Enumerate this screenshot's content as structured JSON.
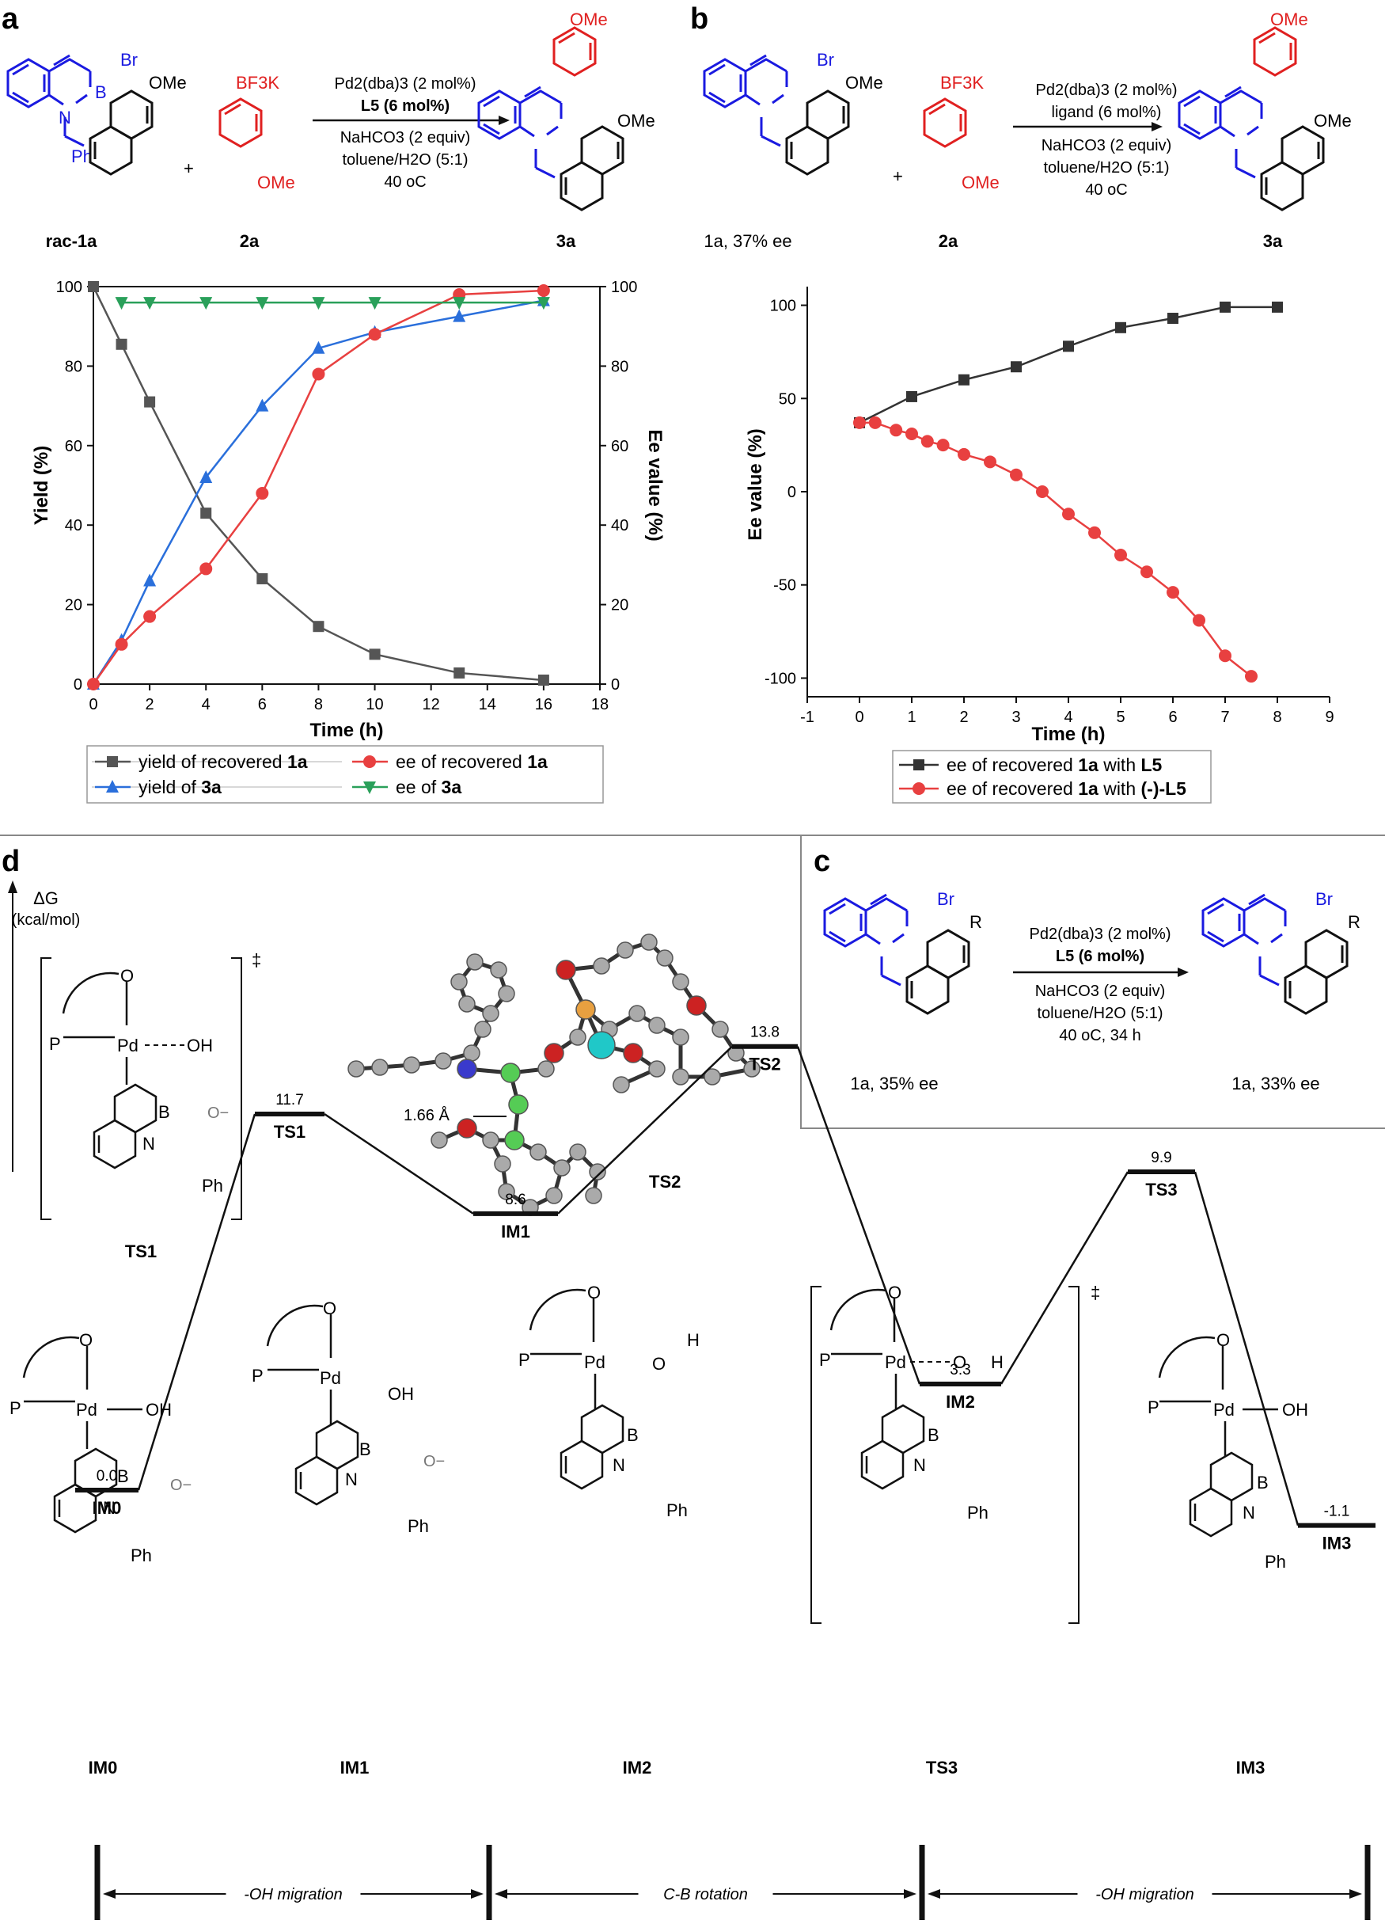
{
  "panels": {
    "a": "a",
    "b": "b",
    "c": "c",
    "d": "d"
  },
  "labels": {
    "Br": "Br",
    "OMe": "OMe",
    "N": "N",
    "B": "B",
    "Ph": "Ph",
    "BF3K": "BF3K",
    "plus": "+",
    "O": "O",
    "P": "P",
    "Pd": "Pd",
    "OH": "OH",
    "H": "H",
    "Ominus": "O−",
    "R": "R",
    "dagger": "‡"
  },
  "scheme_a": {
    "sm": "rac-1a",
    "reagent": "2a",
    "product": "3a",
    "conditions": [
      "Pd2(dba)3 (2 mol%)",
      "L5 (6 mol%)",
      "NaHCO3 (2 equiv)",
      "toluene/H2O (5:1)",
      "40 oC"
    ]
  },
  "scheme_b": {
    "sm": "1a, 37% ee",
    "reagent": "2a",
    "product": "3a",
    "conditions": [
      "Pd2(dba)3 (2 mol%)",
      "ligand (6 mol%)",
      "NaHCO3 (2 equiv)",
      "toluene/H2O (5:1)",
      "40 oC"
    ]
  },
  "scheme_c": {
    "sm": "1a, 35% ee",
    "product": "1a, 33% ee",
    "conditions": [
      "Pd2(dba)3 (2 mol%)",
      "L5 (6 mol%)",
      "NaHCO3 (2 equiv)",
      "toluene/H2O (5:1)",
      "40 oC, 34 h"
    ]
  },
  "chart_data": [
    {
      "type": "line",
      "panel": "a",
      "xlabel": "Time (h)",
      "ylabel": "Yield (%)",
      "y2label": "Ee value (%)",
      "xlim": [
        0,
        18
      ],
      "ylim": [
        0,
        100
      ],
      "y2lim": [
        0,
        100
      ],
      "xticks": [
        "0",
        "2",
        "4",
        "6",
        "8",
        "10",
        "12",
        "14",
        "16",
        "18"
      ],
      "yticks": [
        "0",
        "20",
        "40",
        "60",
        "80",
        "100"
      ],
      "y2ticks": [
        "0",
        "20",
        "40",
        "60",
        "80",
        "100"
      ],
      "legend_position": "bottom",
      "series": [
        {
          "name": "yield of recovered 1a",
          "color": "#555555",
          "marker": "square",
          "axis": "left",
          "x": [
            0,
            1,
            2,
            4,
            6,
            8,
            10,
            13,
            16
          ],
          "y": [
            100,
            85.5,
            71,
            43,
            26.5,
            14.5,
            7.5,
            2.8,
            1.0
          ]
        },
        {
          "name": "yield of 3a",
          "color": "#2a6fdb",
          "marker": "triangle-up",
          "axis": "left",
          "x": [
            0,
            1,
            2,
            4,
            6,
            8,
            10,
            13,
            16
          ],
          "y": [
            0,
            11,
            26,
            52,
            70,
            84.5,
            88.5,
            92.5,
            96.5
          ]
        },
        {
          "name": "ee of recovered 1a",
          "color": "#e84040",
          "marker": "circle",
          "axis": "right",
          "x": [
            0,
            1,
            2,
            4,
            6,
            8,
            10,
            13,
            16
          ],
          "y": [
            0,
            10,
            17,
            29,
            48,
            78,
            88,
            98,
            99
          ]
        },
        {
          "name": "ee of 3a",
          "color": "#2aa05a",
          "marker": "triangle-down",
          "axis": "right",
          "x": [
            1,
            2,
            4,
            6,
            8,
            10,
            13,
            16
          ],
          "y": [
            96,
            96,
            96,
            96,
            96,
            96,
            96,
            96
          ]
        }
      ],
      "legend": [
        {
          "pre": "yield of recovered ",
          "bold": "1a"
        },
        {
          "pre": "ee of recovered ",
          "bold": "1a"
        },
        {
          "pre": "yield of ",
          "bold": "3a"
        },
        {
          "pre": "ee of ",
          "bold": "3a"
        }
      ]
    },
    {
      "type": "line",
      "panel": "b",
      "xlabel": "Time (h)",
      "ylabel": "Ee value (%)",
      "xlim": [
        -1,
        9
      ],
      "ylim": [
        -110,
        110
      ],
      "xticks": [
        "-1",
        "0",
        "1",
        "2",
        "3",
        "4",
        "5",
        "6",
        "7",
        "8",
        "9"
      ],
      "yticks": [
        "-100",
        "-50",
        "0",
        "50",
        "100"
      ],
      "legend_position": "bottom",
      "series": [
        {
          "name": "ee of recovered 1a with L5",
          "color": "#333333",
          "marker": "square",
          "x": [
            0,
            1,
            2,
            3,
            4,
            5,
            6,
            7,
            8
          ],
          "y": [
            37,
            51,
            60,
            67,
            78,
            88,
            93,
            99,
            99
          ]
        },
        {
          "name": "ee of recovered 1a with (-)-L5",
          "color": "#e84040",
          "marker": "circle",
          "x": [
            0,
            0.3,
            0.7,
            1,
            1.3,
            1.6,
            2,
            2.5,
            3,
            3.5,
            4,
            4.5,
            5,
            5.5,
            6,
            6.5,
            7,
            7.5
          ],
          "y": [
            37,
            37,
            33,
            31,
            27,
            25,
            20,
            16,
            9,
            0,
            -12,
            -22,
            -34,
            -43,
            -54,
            -69,
            -88,
            -99
          ]
        }
      ],
      "legend": [
        {
          "pre": "ee of recovered ",
          "bold": "1a",
          "post": " with ",
          "bold2": "L5"
        },
        {
          "pre": "ee of recovered ",
          "bold": "1a",
          "post": " with ",
          "bold2": "(-)-L5"
        }
      ]
    },
    {
      "type": "energy-profile",
      "panel": "d",
      "ylabel": "ΔG",
      "yunit": "(kcal/mol)",
      "states": [
        {
          "name": "IM0",
          "value": "0.0"
        },
        {
          "name": "TS1",
          "value": "11.7"
        },
        {
          "name": "IM1",
          "value": "8.6"
        },
        {
          "name": "TS2",
          "value": "13.8"
        },
        {
          "name": "IM2",
          "value": "3.3"
        },
        {
          "name": "TS3",
          "value": "9.9"
        },
        {
          "name": "IM3",
          "value": "-1.1"
        }
      ],
      "bond_label": "1.66 Å",
      "model_label": "TS2",
      "inset_label": "TS1",
      "structure_labels": [
        "IM0",
        "IM1",
        "IM2",
        "TS3",
        "IM3"
      ],
      "segments": [
        "-OH migration",
        "C-B rotation",
        "-OH migration"
      ]
    }
  ]
}
